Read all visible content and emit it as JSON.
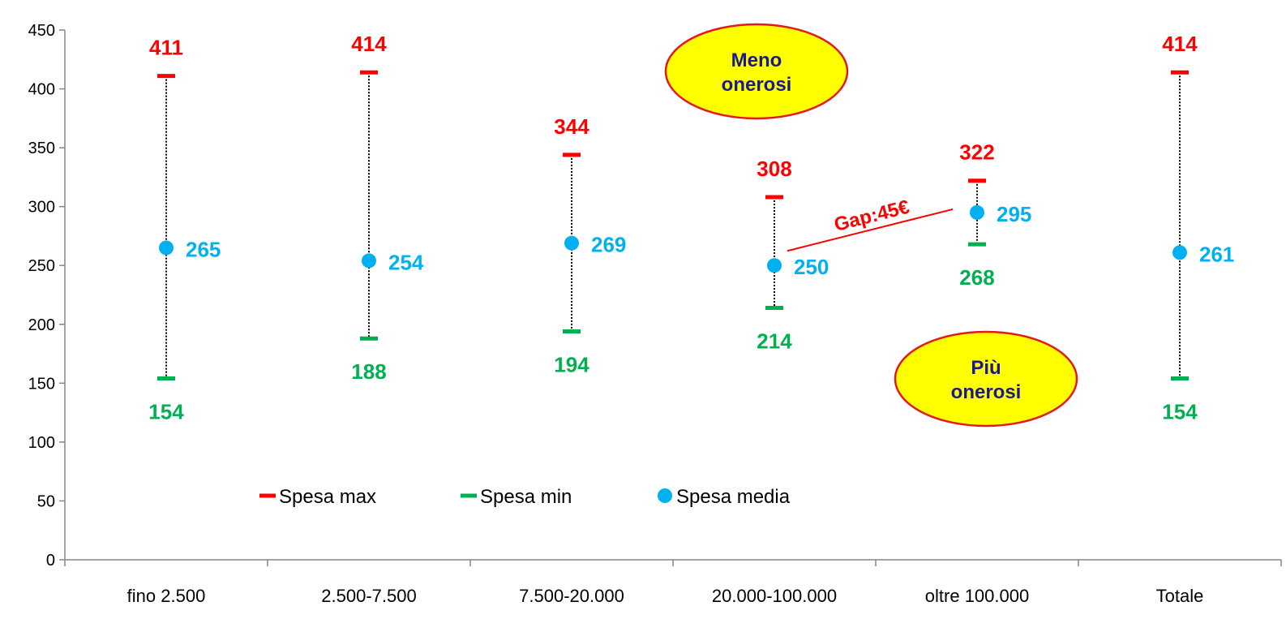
{
  "chart_data": {
    "type": "scatter",
    "title": "",
    "xlabel": "",
    "ylabel": "",
    "ylim": [
      0,
      450
    ],
    "yticks": [
      0,
      50,
      100,
      150,
      200,
      250,
      300,
      350,
      400,
      450
    ],
    "grid": false,
    "categories": [
      "fino 2.500",
      "2.500-7.500",
      "7.500-20.000",
      "20.000-100.000",
      "oltre 100.000",
      "Totale"
    ],
    "series": [
      {
        "name": "Spesa max",
        "values": [
          411,
          414,
          344,
          308,
          322,
          414
        ],
        "color": "#ff0000",
        "marker": "dash"
      },
      {
        "name": "Spesa min",
        "values": [
          154,
          188,
          194,
          214,
          268,
          154
        ],
        "color": "#00b050",
        "marker": "dash"
      },
      {
        "name": "Spesa media",
        "values": [
          265,
          254,
          269,
          250,
          295,
          261
        ],
        "color": "#00b0f0",
        "marker": "circle"
      }
    ],
    "range_line": {
      "style": "dotted",
      "color": "#000000"
    },
    "legend": {
      "placement": "bottom-center"
    },
    "annotations": {
      "bubble_top": {
        "text_lines": [
          "Meno",
          "onerosi"
        ],
        "fill": "#ffff00",
        "border": "#e31a1c",
        "text_color": "#1a1a8c"
      },
      "bubble_bottom": {
        "text_lines": [
          "Più",
          "onerosi"
        ],
        "fill": "#ffff00",
        "border": "#e31a1c",
        "text_color": "#1a1a8c"
      },
      "gap": {
        "text": "Gap:45€",
        "color": "#ff0000",
        "from_category": "20.000-100.000",
        "to_category": "oltre 100.000"
      }
    }
  }
}
